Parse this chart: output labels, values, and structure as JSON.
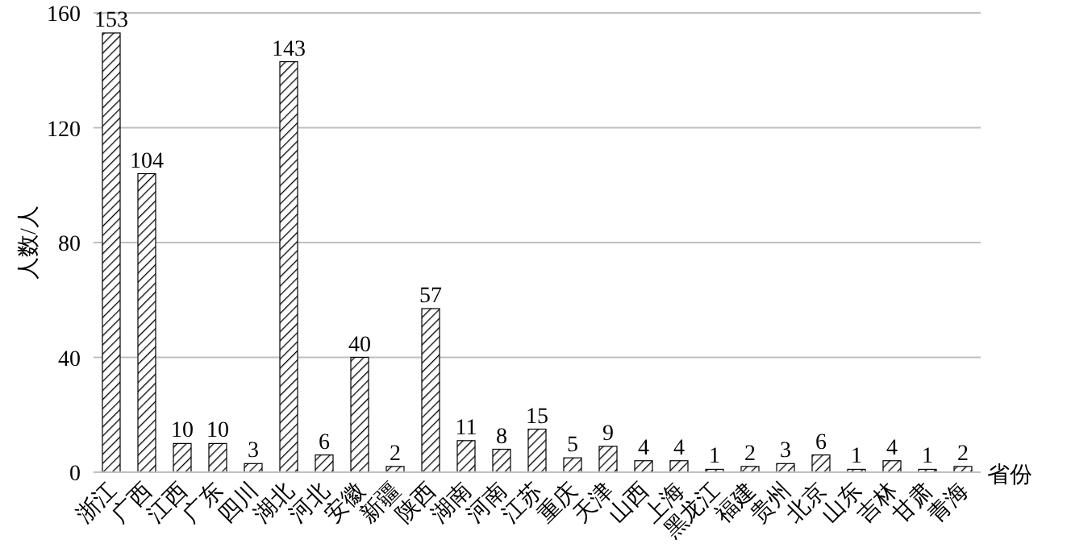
{
  "chart_data": {
    "type": "bar",
    "ylabel": "人数/人",
    "xlabel": "省份",
    "categories": [
      "浙江",
      "广西",
      "江西",
      "广东",
      "四川",
      "湖北",
      "河北",
      "安徽",
      "新疆",
      "陕西",
      "湖南",
      "河南",
      "江苏",
      "重庆",
      "天津",
      "山西",
      "上海",
      "黑龙江",
      "福建",
      "贵州",
      "北京",
      "山东",
      "吉林",
      "甘肃",
      "青海"
    ],
    "values": [
      153,
      104,
      10,
      10,
      3,
      143,
      6,
      40,
      2,
      57,
      11,
      8,
      15,
      5,
      9,
      4,
      4,
      1,
      2,
      3,
      6,
      1,
      4,
      1,
      2
    ],
    "color": "#000000",
    "ylim": [
      0,
      160
    ],
    "yticks": [
      0,
      40,
      80,
      120,
      160
    ],
    "grid": "y",
    "data_labels": true
  }
}
